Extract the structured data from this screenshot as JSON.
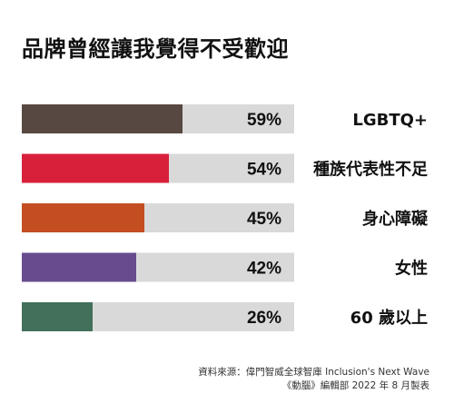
{
  "title": "品牌曾經讓我覺得不受歡迎",
  "colors": {
    "track": "#d9d9d9",
    "bars": [
      "#574841",
      "#d9203b",
      "#c44e22",
      "#684b8e",
      "#42705a"
    ]
  },
  "chart_data": {
    "type": "bar",
    "orientation": "horizontal",
    "title": "品牌曾經讓我覺得不受歡迎",
    "categories": [
      "LGBTQ+",
      "種族代表性不足",
      "身心障礙",
      "女性",
      "60 歲以上"
    ],
    "values": [
      59,
      54,
      45,
      42,
      26
    ],
    "value_labels": [
      "59%",
      "54%",
      "45%",
      "42%",
      "26%"
    ],
    "unit": "%",
    "xlim": [
      0,
      100
    ],
    "grid": false,
    "legend": "none"
  },
  "source": {
    "line1": "資料來源：偉門智威全球智庫 Inclusion's Next Wave",
    "line2": "《動腦》編輯部 2022 年 8 月製表"
  }
}
